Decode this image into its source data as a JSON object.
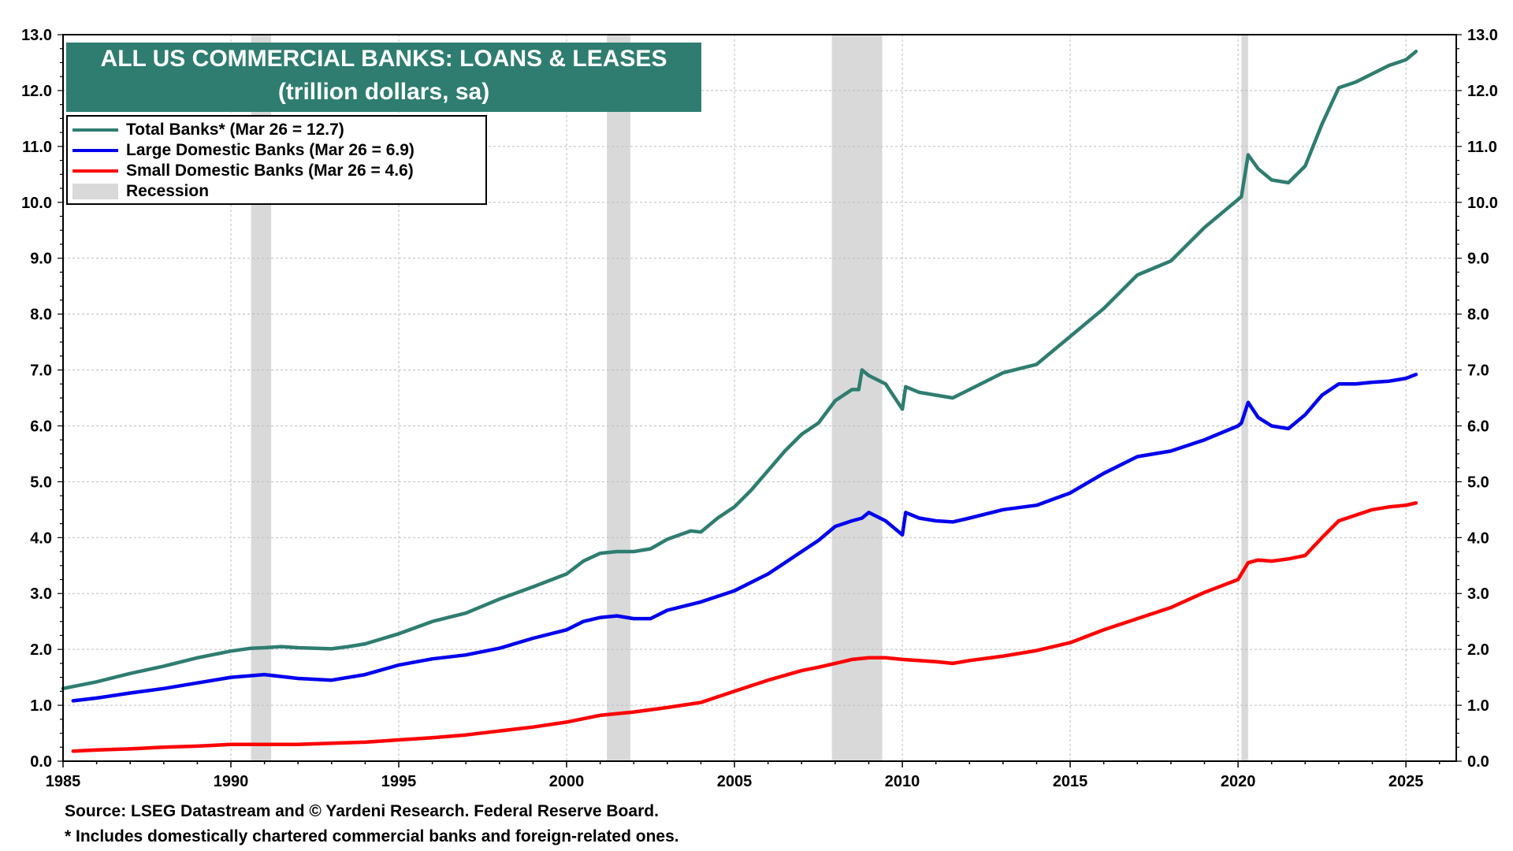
{
  "chart_data": {
    "type": "line",
    "title": "ALL US COMMERCIAL BANKS: LOANS & LEASES",
    "subtitle": "(trillion dollars, sa)",
    "xlim": [
      1985,
      2026.5
    ],
    "ylim": [
      0,
      13
    ],
    "grid": true,
    "legend_position": "top-left",
    "x_ticks": [
      "1985",
      "1990",
      "1995",
      "2000",
      "2005",
      "2010",
      "2015",
      "2020",
      "2025"
    ],
    "y_ticks": [
      "0.0",
      "1.0",
      "2.0",
      "3.0",
      "4.0",
      "5.0",
      "6.0",
      "7.0",
      "8.0",
      "9.0",
      "10.0",
      "11.0",
      "12.0",
      "13.0"
    ],
    "recessions": [
      [
        1990.6,
        1991.2
      ],
      [
        2001.2,
        2001.9
      ],
      [
        2007.9,
        2009.4
      ],
      [
        2020.1,
        2020.3
      ]
    ],
    "series": [
      {
        "name": "Total Banks* (Mar 26 = 12.7)",
        "color": "#2e7d70",
        "points": [
          [
            1985,
            1.3
          ],
          [
            1986,
            1.42
          ],
          [
            1987,
            1.57
          ],
          [
            1988,
            1.7
          ],
          [
            1989,
            1.85
          ],
          [
            1990,
            1.97
          ],
          [
            1990.6,
            2.02
          ],
          [
            1991,
            2.03
          ],
          [
            1991.5,
            2.05
          ],
          [
            1992,
            2.03
          ],
          [
            1993,
            2.01
          ],
          [
            1993.5,
            2.05
          ],
          [
            1994,
            2.1
          ],
          [
            1995,
            2.28
          ],
          [
            1996,
            2.5
          ],
          [
            1997,
            2.65
          ],
          [
            1998,
            2.9
          ],
          [
            1999,
            3.12
          ],
          [
            2000,
            3.35
          ],
          [
            2000.5,
            3.58
          ],
          [
            2001,
            3.72
          ],
          [
            2001.5,
            3.75
          ],
          [
            2002,
            3.75
          ],
          [
            2002.5,
            3.8
          ],
          [
            2003,
            3.97
          ],
          [
            2003.7,
            4.12
          ],
          [
            2004,
            4.1
          ],
          [
            2004.5,
            4.35
          ],
          [
            2005,
            4.55
          ],
          [
            2005.5,
            4.85
          ],
          [
            2006,
            5.2
          ],
          [
            2006.5,
            5.55
          ],
          [
            2007,
            5.85
          ],
          [
            2007.5,
            6.05
          ],
          [
            2008,
            6.45
          ],
          [
            2008.5,
            6.65
          ],
          [
            2008.7,
            6.65
          ],
          [
            2008.8,
            7.0
          ],
          [
            2009,
            6.9
          ],
          [
            2009.5,
            6.75
          ],
          [
            2010,
            6.3
          ],
          [
            2010.1,
            6.7
          ],
          [
            2010.5,
            6.6
          ],
          [
            2011,
            6.55
          ],
          [
            2011.5,
            6.5
          ],
          [
            2012,
            6.65
          ],
          [
            2012.5,
            6.8
          ],
          [
            2013,
            6.95
          ],
          [
            2014,
            7.1
          ],
          [
            2015,
            7.6
          ],
          [
            2016,
            8.1
          ],
          [
            2017,
            8.7
          ],
          [
            2018,
            8.95
          ],
          [
            2019,
            9.55
          ],
          [
            2020,
            10.05
          ],
          [
            2020.1,
            10.1
          ],
          [
            2020.3,
            10.85
          ],
          [
            2020.6,
            10.6
          ],
          [
            2021,
            10.4
          ],
          [
            2021.5,
            10.35
          ],
          [
            2022,
            10.65
          ],
          [
            2022.5,
            11.4
          ],
          [
            2023,
            12.05
          ],
          [
            2023.5,
            12.15
          ],
          [
            2024,
            12.3
          ],
          [
            2024.5,
            12.45
          ],
          [
            2025,
            12.55
          ],
          [
            2025.3,
            12.7
          ]
        ]
      },
      {
        "name": "Large Domestic Banks (Mar 26 = 6.9)",
        "color": "#0000ee",
        "points": [
          [
            1985.3,
            1.08
          ],
          [
            1986,
            1.13
          ],
          [
            1987,
            1.22
          ],
          [
            1988,
            1.3
          ],
          [
            1989,
            1.4
          ],
          [
            1990,
            1.5
          ],
          [
            1991,
            1.55
          ],
          [
            1992,
            1.48
          ],
          [
            1993,
            1.45
          ],
          [
            1994,
            1.55
          ],
          [
            1995,
            1.72
          ],
          [
            1996,
            1.83
          ],
          [
            1997,
            1.9
          ],
          [
            1998,
            2.02
          ],
          [
            1999,
            2.2
          ],
          [
            2000,
            2.35
          ],
          [
            2000.5,
            2.5
          ],
          [
            2001,
            2.57
          ],
          [
            2001.5,
            2.6
          ],
          [
            2002,
            2.55
          ],
          [
            2002.5,
            2.55
          ],
          [
            2003,
            2.7
          ],
          [
            2004,
            2.85
          ],
          [
            2005,
            3.05
          ],
          [
            2006,
            3.35
          ],
          [
            2006.5,
            3.55
          ],
          [
            2007,
            3.75
          ],
          [
            2007.5,
            3.95
          ],
          [
            2008,
            4.2
          ],
          [
            2008.5,
            4.3
          ],
          [
            2008.8,
            4.35
          ],
          [
            2009,
            4.45
          ],
          [
            2009.5,
            4.3
          ],
          [
            2010,
            4.05
          ],
          [
            2010.1,
            4.45
          ],
          [
            2010.5,
            4.35
          ],
          [
            2011,
            4.3
          ],
          [
            2011.5,
            4.28
          ],
          [
            2012,
            4.35
          ],
          [
            2013,
            4.5
          ],
          [
            2014,
            4.58
          ],
          [
            2015,
            4.8
          ],
          [
            2016,
            5.15
          ],
          [
            2017,
            5.45
          ],
          [
            2018,
            5.55
          ],
          [
            2019,
            5.75
          ],
          [
            2020,
            6.0
          ],
          [
            2020.1,
            6.05
          ],
          [
            2020.3,
            6.42
          ],
          [
            2020.6,
            6.15
          ],
          [
            2021,
            6.0
          ],
          [
            2021.5,
            5.95
          ],
          [
            2022,
            6.2
          ],
          [
            2022.5,
            6.55
          ],
          [
            2023,
            6.75
          ],
          [
            2023.5,
            6.75
          ],
          [
            2024,
            6.78
          ],
          [
            2024.5,
            6.8
          ],
          [
            2025,
            6.85
          ],
          [
            2025.3,
            6.92
          ]
        ]
      },
      {
        "name": "Small Domestic Banks (Mar 26 = 4.6)",
        "color": "#ff0000",
        "points": [
          [
            1985.3,
            0.18
          ],
          [
            1986,
            0.2
          ],
          [
            1987,
            0.22
          ],
          [
            1988,
            0.25
          ],
          [
            1989,
            0.27
          ],
          [
            1990,
            0.3
          ],
          [
            1991,
            0.3
          ],
          [
            1992,
            0.3
          ],
          [
            1993,
            0.32
          ],
          [
            1994,
            0.34
          ],
          [
            1995,
            0.38
          ],
          [
            1996,
            0.42
          ],
          [
            1997,
            0.47
          ],
          [
            1998,
            0.54
          ],
          [
            1999,
            0.61
          ],
          [
            2000,
            0.7
          ],
          [
            2001,
            0.82
          ],
          [
            2002,
            0.88
          ],
          [
            2003,
            0.96
          ],
          [
            2004,
            1.05
          ],
          [
            2005,
            1.25
          ],
          [
            2006,
            1.45
          ],
          [
            2007,
            1.62
          ],
          [
            2007.5,
            1.68
          ],
          [
            2008,
            1.75
          ],
          [
            2008.5,
            1.82
          ],
          [
            2009,
            1.85
          ],
          [
            2009.5,
            1.85
          ],
          [
            2010,
            1.82
          ],
          [
            2011,
            1.78
          ],
          [
            2011.5,
            1.75
          ],
          [
            2012,
            1.8
          ],
          [
            2013,
            1.88
          ],
          [
            2014,
            1.98
          ],
          [
            2015,
            2.12
          ],
          [
            2016,
            2.35
          ],
          [
            2017,
            2.55
          ],
          [
            2018,
            2.75
          ],
          [
            2019,
            3.02
          ],
          [
            2020,
            3.25
          ],
          [
            2020.1,
            3.35
          ],
          [
            2020.3,
            3.55
          ],
          [
            2020.6,
            3.6
          ],
          [
            2021,
            3.58
          ],
          [
            2021.5,
            3.62
          ],
          [
            2022,
            3.68
          ],
          [
            2022.5,
            4.0
          ],
          [
            2023,
            4.3
          ],
          [
            2023.5,
            4.4
          ],
          [
            2024,
            4.5
          ],
          [
            2024.5,
            4.55
          ],
          [
            2025,
            4.58
          ],
          [
            2025.3,
            4.62
          ]
        ]
      }
    ]
  },
  "legend": {
    "recession_label": "Recession",
    "recession_color": "#d9d9d9"
  },
  "footnotes": {
    "source": "Source: LSEG Datastream and © Yardeni Research. Federal Reserve Board.",
    "note": "* Includes domestically chartered commercial banks and foreign-related ones."
  }
}
